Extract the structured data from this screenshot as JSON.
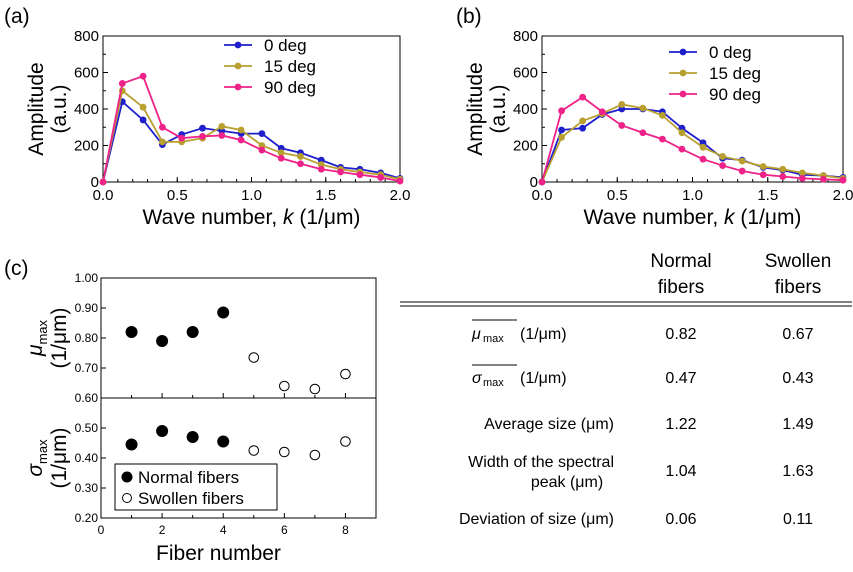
{
  "panels": {
    "a": "(a)",
    "b": "(b)",
    "c": "(c)"
  },
  "chart_data": [
    {
      "type": "line",
      "panel": "(a)",
      "xlabel": "Wave number,",
      "xlabel_k": "k",
      "xlabel_unit": "(1/μm)",
      "ylabel": "Amplitude",
      "ylabel_unit": "(a.u.)",
      "xlim": [
        0,
        2.0
      ],
      "ylim": [
        0,
        800
      ],
      "xticks": [
        "0.0",
        "0.5",
        "1.0",
        "1.5",
        "2.0"
      ],
      "yticks": [
        "0",
        "200",
        "400",
        "600",
        "800"
      ],
      "legend_position": "top-right",
      "x": [
        0,
        0.13,
        0.27,
        0.4,
        0.53,
        0.67,
        0.8,
        0.93,
        1.07,
        1.2,
        1.33,
        1.47,
        1.6,
        1.73,
        1.87,
        2.0
      ],
      "series": [
        {
          "name": "0 deg",
          "color": "#1f1fcc",
          "values": [
            0,
            440,
            340,
            205,
            260,
            295,
            280,
            265,
            265,
            185,
            160,
            120,
            80,
            70,
            50,
            20
          ]
        },
        {
          "name": "15 deg",
          "color": "#b8a030",
          "values": [
            0,
            500,
            410,
            220,
            220,
            240,
            305,
            285,
            200,
            160,
            140,
            95,
            70,
            55,
            40,
            15
          ]
        },
        {
          "name": "90 deg",
          "color": "#ee2288",
          "values": [
            0,
            540,
            580,
            300,
            240,
            250,
            255,
            230,
            175,
            130,
            100,
            70,
            55,
            40,
            25,
            5
          ]
        }
      ]
    },
    {
      "type": "line",
      "panel": "(b)",
      "xlabel": "Wave number,",
      "xlabel_k": "k",
      "xlabel_unit": "(1/μm)",
      "ylabel": "Amplitude",
      "ylabel_unit": "(a.u.)",
      "xlim": [
        0,
        2.0
      ],
      "ylim": [
        0,
        800
      ],
      "xticks": [
        "0.0",
        "0.5",
        "1.0",
        "1.5",
        "2.0"
      ],
      "yticks": [
        "0",
        "200",
        "400",
        "600",
        "800"
      ],
      "legend_position": "top-right",
      "x": [
        0,
        0.13,
        0.27,
        0.4,
        0.53,
        0.67,
        0.8,
        0.93,
        1.07,
        1.2,
        1.33,
        1.47,
        1.6,
        1.73,
        1.87,
        2.0
      ],
      "series": [
        {
          "name": "0 deg",
          "color": "#1f1fcc",
          "values": [
            0,
            285,
            295,
            370,
            400,
            400,
            385,
            295,
            215,
            130,
            120,
            80,
            65,
            40,
            35,
            25
          ]
        },
        {
          "name": "15 deg",
          "color": "#b8a030",
          "values": [
            0,
            245,
            335,
            375,
            425,
            405,
            365,
            270,
            190,
            140,
            115,
            85,
            70,
            50,
            35,
            20
          ]
        },
        {
          "name": "90 deg",
          "color": "#ee2288",
          "values": [
            0,
            390,
            465,
            385,
            310,
            270,
            235,
            180,
            125,
            90,
            60,
            40,
            30,
            20,
            15,
            10
          ]
        }
      ]
    },
    {
      "type": "scatter",
      "panel": "(c) top",
      "ylabel": "μ",
      "ylabel_sub": "max",
      "ylabel_unit": "(1/μm)",
      "xlim": [
        0,
        9
      ],
      "ylim": [
        0.6,
        1.0
      ],
      "yticks": [
        "0.60",
        "0.70",
        "0.80",
        "0.90",
        "1.00"
      ],
      "series": [
        {
          "name": "Normal fibers",
          "marker": "filled",
          "x": [
            1,
            2,
            3,
            4
          ],
          "values": [
            0.82,
            0.79,
            0.82,
            0.885
          ]
        },
        {
          "name": "Swollen fibers",
          "marker": "open",
          "x": [
            5,
            6,
            7,
            8
          ],
          "values": [
            0.735,
            0.64,
            0.63,
            0.68
          ]
        }
      ]
    },
    {
      "type": "scatter",
      "panel": "(c) bottom",
      "xlabel": "Fiber number",
      "ylabel": "σ",
      "ylabel_sub": "max",
      "ylabel_unit": "(1/μm)",
      "xlim": [
        0,
        9
      ],
      "ylim": [
        0.2,
        0.6
      ],
      "xticks": [
        "0",
        "2",
        "4",
        "6",
        "8"
      ],
      "yticks": [
        "0.20",
        "0.30",
        "0.40",
        "0.50"
      ],
      "legend_position": "bottom-left",
      "series": [
        {
          "name": "Normal fibers",
          "marker": "filled",
          "x": [
            1,
            2,
            3,
            4
          ],
          "values": [
            0.445,
            0.49,
            0.47,
            0.455
          ]
        },
        {
          "name": "Swollen fibers",
          "marker": "open",
          "x": [
            5,
            6,
            7,
            8
          ],
          "values": [
            0.425,
            0.42,
            0.41,
            0.455
          ]
        }
      ]
    },
    {
      "type": "table",
      "panel": "(c) table",
      "columns": [
        "",
        "Normal fibers",
        "Swollen fibers"
      ],
      "header": {
        "normal_line1": "Normal",
        "normal_line2": "fibers",
        "swollen_line1": "Swollen",
        "swollen_line2": "fibers"
      },
      "rows": [
        {
          "label_main": "μ",
          "label_sub": "max",
          "label_unit": "(1/μm)",
          "normal": "0.82",
          "swollen": "0.67"
        },
        {
          "label_main": "σ",
          "label_sub": "max",
          "label_unit": "(1/μm)",
          "normal": "0.47",
          "swollen": "0.43"
        },
        {
          "label": "Average size (μm)",
          "normal": "1.22",
          "swollen": "1.49"
        },
        {
          "label_line1": "Width of the spectral",
          "label_line2": "peak (μm)",
          "normal": "1.04",
          "swollen": "1.63"
        },
        {
          "label": "Deviation of size (μm)",
          "normal": "0.06",
          "swollen": "0.11"
        }
      ]
    }
  ]
}
